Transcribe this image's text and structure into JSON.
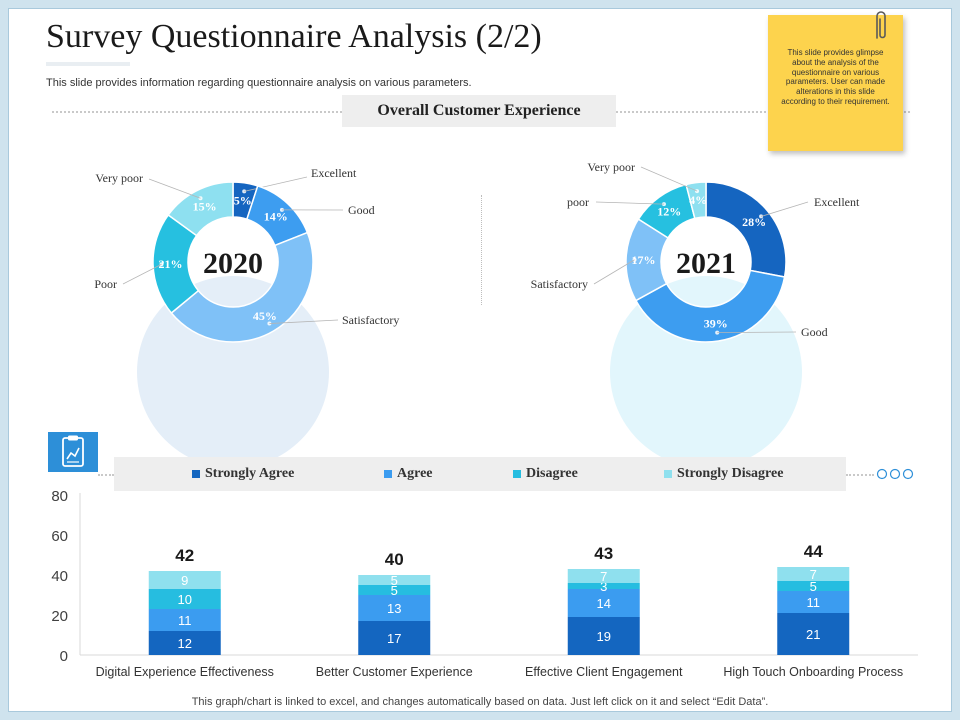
{
  "title": "Survey Questionnaire Analysis (2/2)",
  "subtitle": "This slide provides information regarding questionnaire analysis on various parameters.",
  "section_header": "Overall Customer Experience",
  "sticky_note": "This slide provides glimpse about the analysis of the questionnaire on various parameters. User can made alterations in this slide according to their requirement.",
  "footer_note": "This graph/chart is linked to excel,  and changes automatically based on data. Just left click on it and select “Edit Data”.",
  "colors": {
    "excellent": "#1565c0",
    "good": "#3d9df0",
    "satisfactory": "#7fc1f7",
    "poor": "#26c0e0",
    "very_poor": "#8ee0f0",
    "strongly_agree": "#1466c0",
    "agree": "#3b9cf0",
    "disagree": "#26bde0",
    "strongly_disagree": "#8fe0ee",
    "backdrop_2020": "#e4eef8",
    "backdrop_2021": "#e2f6fc"
  },
  "icons": {
    "survey": "clipboard-chart-icon"
  },
  "chart_data": [
    {
      "type": "pie",
      "title": "2020",
      "slices": [
        {
          "label": "Excellent",
          "value": 5,
          "display": "5%"
        },
        {
          "label": "Good",
          "value": 14,
          "display": "14%"
        },
        {
          "label": "Satisfactory",
          "value": 45,
          "display": "45%"
        },
        {
          "label": "Poor",
          "value": 21,
          "display": "21%"
        },
        {
          "label": "Very poor",
          "value": 15,
          "display": "15%"
        }
      ]
    },
    {
      "type": "pie",
      "title": "2021",
      "slices": [
        {
          "label": "Excellent",
          "value": 28,
          "display": "28%"
        },
        {
          "label": "Good",
          "value": 39,
          "display": "39%"
        },
        {
          "label": "Satisfactory",
          "value": 17,
          "display": "17%"
        },
        {
          "label": "poor",
          "value": 12,
          "display": "12%"
        },
        {
          "label": "Very poor",
          "value": 4,
          "display": "4%"
        }
      ]
    },
    {
      "type": "bar",
      "stacked": true,
      "categories": [
        "Digital Experience Effectiveness",
        "Better Customer Experience",
        "Effective Client Engagement",
        "High Touch Onboarding Process"
      ],
      "series": [
        {
          "name": "Strongly Agree",
          "values": [
            12,
            17,
            19,
            21
          ]
        },
        {
          "name": "Agree",
          "values": [
            11,
            13,
            14,
            11
          ]
        },
        {
          "name": "Disagree",
          "values": [
            10,
            5,
            3,
            5
          ]
        },
        {
          "name": "Strongly Disagree",
          "values": [
            9,
            5,
            7,
            7
          ]
        }
      ],
      "totals": [
        42,
        40,
        43,
        44
      ],
      "ylim": [
        0,
        80
      ],
      "yticks": [
        0,
        20,
        40,
        60,
        80
      ],
      "legend": "top",
      "grid": false
    }
  ]
}
